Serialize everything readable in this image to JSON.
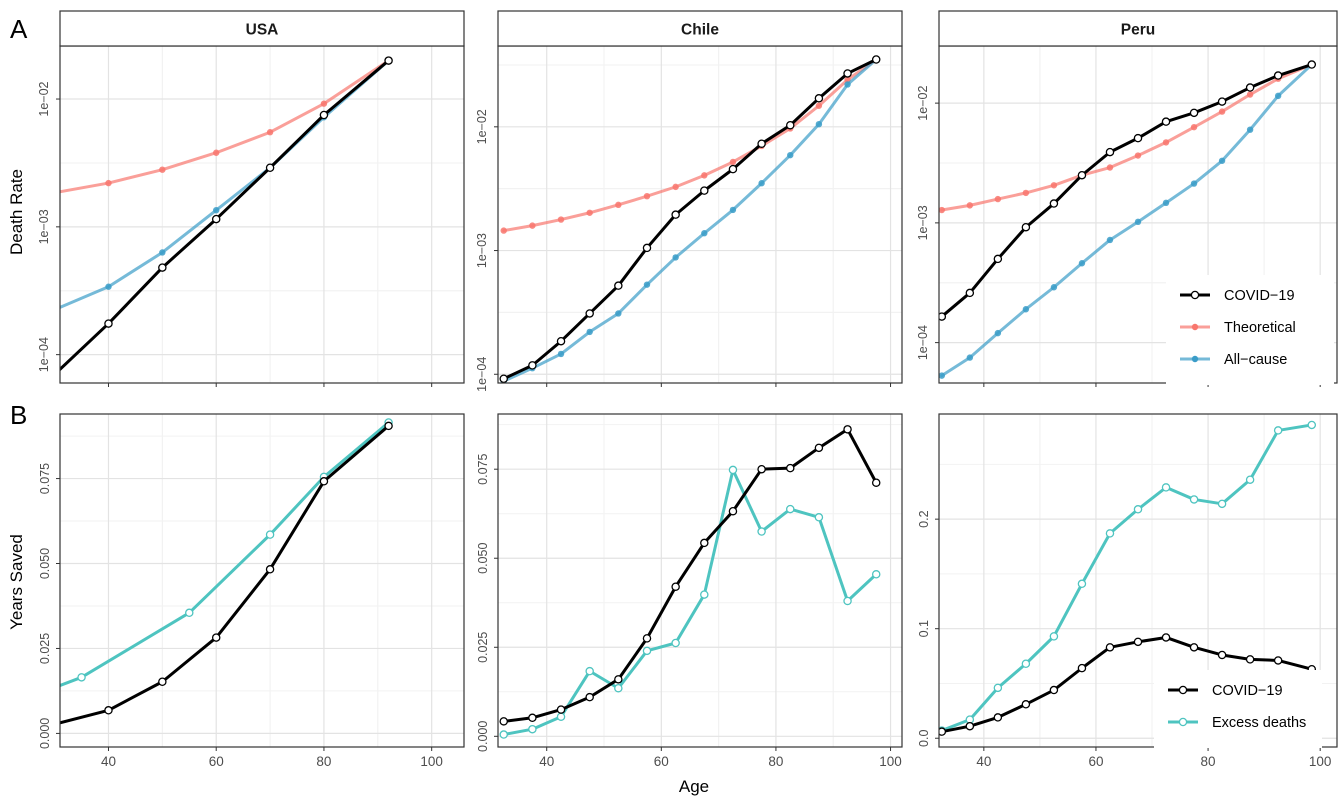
{
  "panel_labels": {
    "top": "A",
    "bottom": "B"
  },
  "shared": {
    "xlabel": "Age",
    "ylabel_top": "Death Rate",
    "ylabel_bottom": "Years Saved"
  },
  "strips": [
    "USA",
    "Chile",
    "Peru"
  ],
  "legend_top": [
    {
      "label": "COVID−19",
      "color": "#000000"
    },
    {
      "label": "Theoretical",
      "color": "#f8766d"
    },
    {
      "label": "All−cause",
      "color": "#3a9cc8"
    }
  ],
  "legend_bottom": [
    {
      "label": "COVID−19",
      "color": "#000000"
    },
    {
      "label": "Excess deaths",
      "color": "#4ec4c0"
    }
  ],
  "chart_data": [
    {
      "type": "line",
      "title": "USA",
      "scale": "log",
      "grid": true,
      "xlim": [
        31,
        106
      ],
      "ylim": [
        6e-05,
        0.026
      ],
      "x_ticks": [
        40,
        60,
        80,
        100
      ],
      "x_tick_labels": [
        "",
        "",
        "",
        ""
      ],
      "y_ticks": [
        0.0001,
        0.001,
        0.01
      ],
      "y_tick_labels": [
        "1e−04",
        "1e−03",
        "1e−02"
      ],
      "series": [
        {
          "name": "Theoretical",
          "color": "#f8766d",
          "x": [
            30,
            40,
            50,
            60,
            70,
            80,
            92
          ],
          "y": [
            0.00185,
            0.0022,
            0.0028,
            0.0038,
            0.0055,
            0.0092,
            0.02
          ]
        },
        {
          "name": "All−cause",
          "color": "#3a9cc8",
          "x": [
            30,
            40,
            50,
            60,
            70,
            80,
            92
          ],
          "y": [
            0.000225,
            0.00034,
            0.00063,
            0.00135,
            0.0029,
            0.0072,
            0.02
          ]
        },
        {
          "name": "COVID−19",
          "color": "#000000",
          "x": [
            30,
            40,
            50,
            60,
            70,
            80,
            92
          ],
          "y": [
            7e-05,
            0.000175,
            0.00048,
            0.00115,
            0.0029,
            0.0075,
            0.02
          ]
        }
      ]
    },
    {
      "type": "line",
      "title": "Chile",
      "scale": "log",
      "grid": true,
      "xlim": [
        31.5,
        102
      ],
      "ylim": [
        8.5e-05,
        0.045
      ],
      "x_ticks": [
        40,
        60,
        80,
        100
      ],
      "x_tick_labels": [
        "",
        "",
        "",
        ""
      ],
      "y_ticks": [
        0.0001,
        0.001,
        0.01
      ],
      "y_tick_labels": [
        "1e−04",
        "1e−03",
        "1e−02"
      ],
      "series": [
        {
          "name": "Theoretical",
          "color": "#f8766d",
          "x": [
            32.5,
            37.5,
            42.5,
            47.5,
            52.5,
            57.5,
            62.5,
            67.5,
            72.5,
            77.5,
            82.5,
            87.5,
            92.5,
            97.5
          ],
          "y": [
            0.00145,
            0.00159,
            0.00178,
            0.00202,
            0.00234,
            0.00275,
            0.00327,
            0.00405,
            0.0052,
            0.007,
            0.0097,
            0.0148,
            0.024,
            0.035
          ]
        },
        {
          "name": "All−cause",
          "color": "#3a9cc8",
          "x": [
            32.5,
            37.5,
            42.5,
            47.5,
            52.5,
            57.5,
            62.5,
            67.5,
            72.5,
            77.5,
            82.5,
            87.5,
            92.5,
            97.5
          ],
          "y": [
            8.8e-05,
            0.000112,
            0.000146,
            0.00022,
            0.00031,
            0.00053,
            0.00088,
            0.00138,
            0.00213,
            0.0035,
            0.0059,
            0.0105,
            0.022,
            0.035
          ]
        },
        {
          "name": "COVID−19",
          "color": "#000000",
          "x": [
            32.5,
            37.5,
            42.5,
            47.5,
            52.5,
            57.5,
            62.5,
            67.5,
            72.5,
            77.5,
            82.5,
            87.5,
            92.5,
            97.5
          ],
          "y": [
            9.2e-05,
            0.000118,
            0.000185,
            0.00031,
            0.00052,
            0.00105,
            0.00195,
            0.00305,
            0.00455,
            0.0073,
            0.0103,
            0.017,
            0.027,
            0.035
          ]
        }
      ]
    },
    {
      "type": "line",
      "title": "Peru",
      "scale": "log",
      "grid": true,
      "xlim": [
        32,
        103
      ],
      "ylim": [
        4.6e-05,
        0.03
      ],
      "x_ticks": [
        40,
        60,
        80,
        100
      ],
      "x_tick_labels": [
        "",
        "",
        "",
        ""
      ],
      "y_ticks": [
        0.0001,
        0.001,
        0.01
      ],
      "y_tick_labels": [
        "1e−04",
        "1e−03",
        "1e−02"
      ],
      "series": [
        {
          "name": "Theoretical",
          "color": "#f8766d",
          "x": [
            32.5,
            37.5,
            42.5,
            47.5,
            52.5,
            57.5,
            62.5,
            67.5,
            72.5,
            77.5,
            82.5,
            87.5,
            92.5,
            98.5
          ],
          "y": [
            0.00128,
            0.0014,
            0.00158,
            0.00178,
            0.00206,
            0.0025,
            0.0029,
            0.00365,
            0.0047,
            0.0063,
            0.0085,
            0.0118,
            0.016,
            0.021
          ]
        },
        {
          "name": "All−cause",
          "color": "#3a9cc8",
          "x": [
            32.5,
            37.5,
            42.5,
            47.5,
            52.5,
            57.5,
            62.5,
            67.5,
            72.5,
            77.5,
            82.5,
            87.5,
            92.5,
            98.5
          ],
          "y": [
            5.3e-05,
            7.5e-05,
            0.00012,
            0.00019,
            0.00029,
            0.00046,
            0.00072,
            0.00102,
            0.00147,
            0.00213,
            0.0033,
            0.006,
            0.0115,
            0.021
          ]
        },
        {
          "name": "COVID−19",
          "color": "#000000",
          "x": [
            32.5,
            37.5,
            42.5,
            47.5,
            52.5,
            57.5,
            62.5,
            67.5,
            72.5,
            77.5,
            82.5,
            87.5,
            92.5,
            98.5
          ],
          "y": [
            0.000165,
            0.00026,
            0.0005,
            0.00092,
            0.00145,
            0.0025,
            0.0039,
            0.0051,
            0.007,
            0.0083,
            0.0103,
            0.0135,
            0.017,
            0.021
          ]
        }
      ]
    },
    {
      "type": "line",
      "title": "USA",
      "scale": "linear",
      "grid": true,
      "xlim": [
        31,
        106
      ],
      "ylim": [
        -0.004,
        0.094
      ],
      "x_ticks": [
        40,
        60,
        80,
        100
      ],
      "x_tick_labels": [
        "40",
        "60",
        "80",
        "100"
      ],
      "y_ticks": [
        0,
        0.025,
        0.05,
        0.075
      ],
      "y_tick_labels": [
        "0.000",
        "0.025",
        "0.050",
        "0.075"
      ],
      "series": [
        {
          "name": "Excess deaths",
          "color": "#4ec4c0",
          "x": [
            30,
            35,
            55,
            70,
            80,
            92
          ],
          "y": [
            0.0135,
            0.0165,
            0.0355,
            0.0585,
            0.0755,
            0.0915
          ]
        },
        {
          "name": "COVID−19",
          "color": "#000000",
          "x": [
            30,
            40,
            50,
            60,
            70,
            80,
            92
          ],
          "y": [
            0.0027,
            0.0068,
            0.0152,
            0.0282,
            0.0483,
            0.0742,
            0.0905
          ]
        }
      ]
    },
    {
      "type": "line",
      "title": "Chile",
      "scale": "linear",
      "grid": true,
      "xlim": [
        31.5,
        102
      ],
      "ylim": [
        -0.003,
        0.0905
      ],
      "x_ticks": [
        40,
        60,
        80,
        100
      ],
      "x_tick_labels": [
        "40",
        "60",
        "80",
        "100"
      ],
      "y_ticks": [
        0,
        0.025,
        0.05,
        0.075
      ],
      "y_tick_labels": [
        "0.000",
        "0.025",
        "0.050",
        "0.075"
      ],
      "series": [
        {
          "name": "Excess deaths",
          "color": "#4ec4c0",
          "x": [
            32.5,
            37.5,
            42.5,
            47.5,
            52.5,
            57.5,
            62.5,
            67.5,
            72.5,
            77.5,
            82.5,
            87.5,
            92.5,
            97.5
          ],
          "y": [
            0.0005,
            0.002,
            0.0055,
            0.0183,
            0.0135,
            0.024,
            0.0262,
            0.0398,
            0.0748,
            0.0575,
            0.0638,
            0.0615,
            0.038,
            0.0455
          ]
        },
        {
          "name": "COVID−19",
          "color": "#000000",
          "x": [
            32.5,
            37.5,
            42.5,
            47.5,
            52.5,
            57.5,
            62.5,
            67.5,
            72.5,
            77.5,
            82.5,
            87.5,
            92.5,
            97.5
          ],
          "y": [
            0.0042,
            0.0052,
            0.0075,
            0.011,
            0.016,
            0.0275,
            0.042,
            0.0543,
            0.0632,
            0.075,
            0.0753,
            0.081,
            0.0862,
            0.0712
          ]
        }
      ]
    },
    {
      "type": "line",
      "title": "Peru",
      "scale": "linear",
      "grid": true,
      "xlim": [
        32,
        103
      ],
      "ylim": [
        -0.008,
        0.296
      ],
      "x_ticks": [
        40,
        60,
        80,
        100
      ],
      "x_tick_labels": [
        "40",
        "60",
        "80",
        "100"
      ],
      "y_ticks": [
        0,
        0.1,
        0.2
      ],
      "y_tick_labels": [
        "0.0",
        "0.1",
        "0.2"
      ],
      "series": [
        {
          "name": "Excess deaths",
          "color": "#4ec4c0",
          "x": [
            32.5,
            37.5,
            42.5,
            47.5,
            52.5,
            57.5,
            62.5,
            67.5,
            72.5,
            77.5,
            82.5,
            87.5,
            92.5,
            98.5
          ],
          "y": [
            0.007,
            0.017,
            0.046,
            0.068,
            0.093,
            0.141,
            0.187,
            0.209,
            0.229,
            0.218,
            0.214,
            0.236,
            0.281,
            0.286
          ]
        },
        {
          "name": "COVID−19",
          "color": "#000000",
          "x": [
            32.5,
            37.5,
            42.5,
            47.5,
            52.5,
            57.5,
            62.5,
            67.5,
            72.5,
            77.5,
            82.5,
            87.5,
            92.5,
            98.5
          ],
          "y": [
            0.006,
            0.011,
            0.019,
            0.031,
            0.044,
            0.064,
            0.083,
            0.088,
            0.092,
            0.083,
            0.076,
            0.072,
            0.071,
            0.063
          ]
        }
      ]
    }
  ]
}
